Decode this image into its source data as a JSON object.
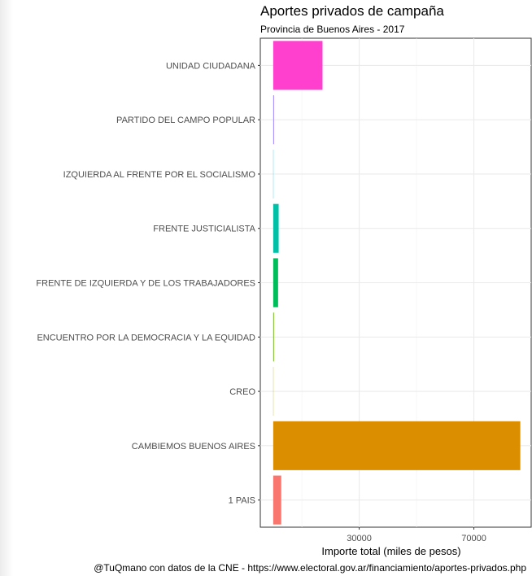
{
  "chart_data": {
    "type": "bar",
    "orientation": "horizontal",
    "title": "Aportes privados de campaña",
    "subtitle": "Provincia de Buenos Aires - 2017",
    "xlabel": "Importe total (miles de pesos)",
    "ylabel": "",
    "caption": "@TuQmano con datos de la CNE - https://www.electoral.gov.ar/financiamiento/aportes-privados.php",
    "xlim": [
      -4500,
      90000
    ],
    "xticks": [
      30000,
      70000
    ],
    "xtick_labels": [
      "30000",
      "70000"
    ],
    "x_minor_gridlines": [
      10000,
      50000
    ],
    "grid": true,
    "legend": "none",
    "categories": [
      "1 PAIS",
      "CAMBIEMOS BUENOS AIRES",
      "CREO",
      "ENCUENTRO POR LA DEMOCRACIA Y LA EQUIDAD",
      "FRENTE DE IZQUIERDA Y DE LOS TRABAJADORES",
      "FRENTE JUSTICIALISTA",
      "IZQUIERDA AL FRENTE POR EL SOCIALISMO",
      "PARTIDO DEL CAMPO POPULAR",
      "UNIDAD CIUDADANA"
    ],
    "values": [
      2800,
      86200,
      80,
      250,
      1700,
      1900,
      80,
      300,
      17200
    ],
    "colors": [
      "#F8766D",
      "#DB8E00",
      "#AEA200",
      "#64B200",
      "#00BD5C",
      "#00C1A7",
      "#00BADE",
      "#A58AFF",
      "#FF3FCE"
    ]
  }
}
